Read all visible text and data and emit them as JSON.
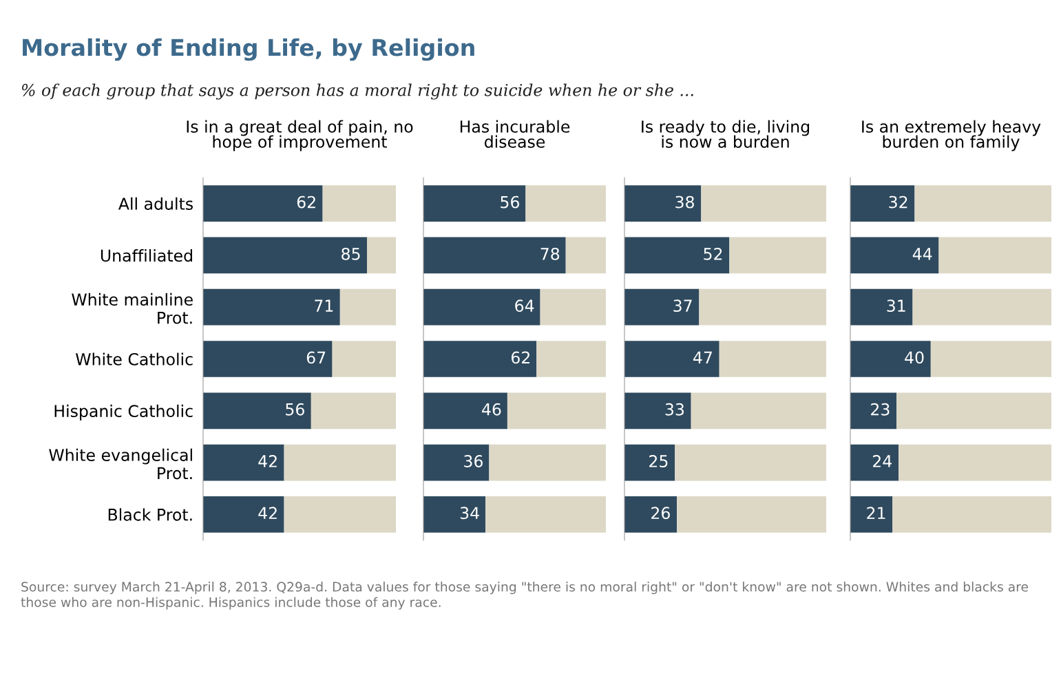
{
  "chart_data": [
    {
      "type": "other",
      "title": "Morality of Ending Life, by Religion",
      "subtitle": "% of each group that says a person has a moral right to suicide when he or she ...",
      "annotations": [
        "Source: survey March 21-April 8, 2013. Q29a-d. Data values for those saying \"there is no moral right\" or \"don't know\" are not shown. Whites and blacks are those who are non-Hispanic. Hispanics include those of any race."
      ]
    },
    {
      "type": "bar",
      "orientation": "horizontal",
      "stacked": true,
      "title": "Is in a great deal of pain, no\nhope of improvement",
      "categories": [
        "All adults",
        "Unaffiliated",
        "White mainline\nProt.",
        "White Catholic",
        "Hispanic Catholic",
        "White evangelical\nProt.",
        "Black Prot."
      ],
      "xlim": [
        0,
        100
      ],
      "tick_labels": "y",
      "series": [
        {
          "color": "#2f4a5e",
          "values": [
            62,
            85,
            71,
            67,
            56,
            42,
            42
          ],
          "value_labels": [
            "62",
            "85",
            "71",
            "67",
            "56",
            "42",
            "42"
          ]
        },
        {
          "color": "#ddd8c6",
          "values": [
            38,
            15,
            29,
            33,
            44,
            58,
            58
          ]
        }
      ]
    },
    {
      "type": "bar",
      "orientation": "horizontal",
      "stacked": true,
      "title": "Has incurable\ndisease",
      "categories": [
        null,
        null,
        null,
        null,
        null,
        null,
        null
      ],
      "xlim": [
        0,
        100
      ],
      "tick_labels": false,
      "series": [
        {
          "color": "#2f4a5e",
          "values": [
            56,
            78,
            64,
            62,
            46,
            36,
            34
          ],
          "value_labels": [
            "56",
            "78",
            "64",
            "62",
            "46",
            "36",
            "34"
          ]
        },
        {
          "color": "#ddd8c6",
          "values": [
            44,
            22,
            36,
            38,
            54,
            64,
            66
          ]
        }
      ]
    },
    {
      "type": "bar",
      "orientation": "horizontal",
      "stacked": true,
      "title": "Is ready to die, living\nis now a burden",
      "categories": [
        null,
        null,
        null,
        null,
        null,
        null,
        null
      ],
      "xlim": [
        0,
        100
      ],
      "tick_labels": false,
      "series": [
        {
          "color": "#2f4a5e",
          "values": [
            38,
            52,
            37,
            47,
            33,
            25,
            26
          ],
          "value_labels": [
            "38",
            "52",
            "37",
            "47",
            "33",
            "25",
            "26"
          ]
        },
        {
          "color": "#ddd8c6",
          "values": [
            62,
            48,
            63,
            53,
            67,
            75,
            74
          ]
        }
      ]
    },
    {
      "type": "bar",
      "orientation": "horizontal",
      "stacked": true,
      "title": "Is an extremely heavy\nburden on family",
      "categories": [
        null,
        null,
        null,
        null,
        null,
        null,
        null
      ],
      "xlim": [
        0,
        100
      ],
      "tick_labels": false,
      "series": [
        {
          "color": "#2f4a5e",
          "values": [
            32,
            44,
            31,
            40,
            23,
            24,
            21
          ],
          "value_labels": [
            "32",
            "44",
            "31",
            "40",
            "23",
            "24",
            "21"
          ]
        },
        {
          "color": "#ddd8c6",
          "values": [
            68,
            56,
            69,
            60,
            77,
            76,
            79
          ]
        }
      ]
    }
  ]
}
